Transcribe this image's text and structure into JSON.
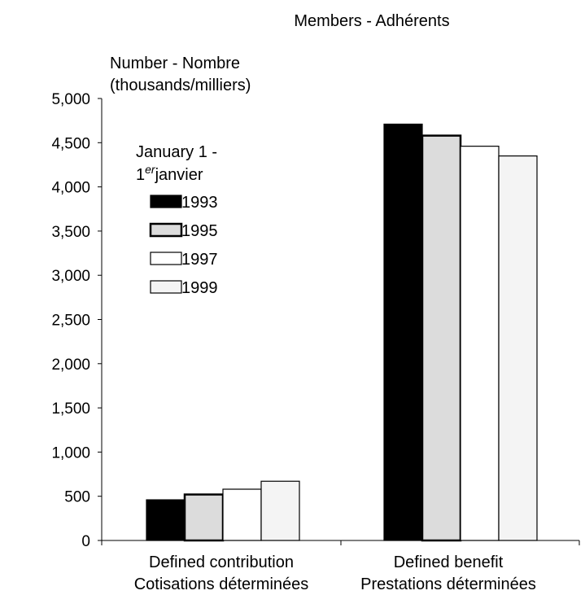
{
  "chart_data": {
    "type": "bar",
    "title": "Members - Adhérents",
    "ylabel": [
      "Number - Nombre",
      "(thousands/milliers)"
    ],
    "ylim": [
      0,
      5000
    ],
    "yticks": [
      "0",
      "500",
      "1,000",
      "1,500",
      "2,000",
      "2,500",
      "3,000",
      "3,500",
      "4,000",
      "4,500",
      "5,000"
    ],
    "categories": [
      [
        "Defined contribution",
        "Cotisations déterminées"
      ],
      [
        "Defined benefit",
        "Prestations déterminées"
      ]
    ],
    "legend": {
      "title_line1": "January 1 -",
      "title_line2_prefix": "1",
      "title_line2_sup": "er",
      "title_line2_suffix": "janvier",
      "placement": "upper-left"
    },
    "series": [
      {
        "name": "1993",
        "values": [
          460,
          4710
        ],
        "fill": "#000000",
        "stroke": "#000000"
      },
      {
        "name": "1995",
        "values": [
          520,
          4580
        ],
        "fill": "#dcdcdc",
        "stroke": "#000000"
      },
      {
        "name": "1997",
        "values": [
          580,
          4460
        ],
        "fill": "#ffffff",
        "stroke": "#000000"
      },
      {
        "name": "1999",
        "values": [
          670,
          4350
        ],
        "fill": "#f4f4f4",
        "stroke": "#000000"
      }
    ]
  }
}
